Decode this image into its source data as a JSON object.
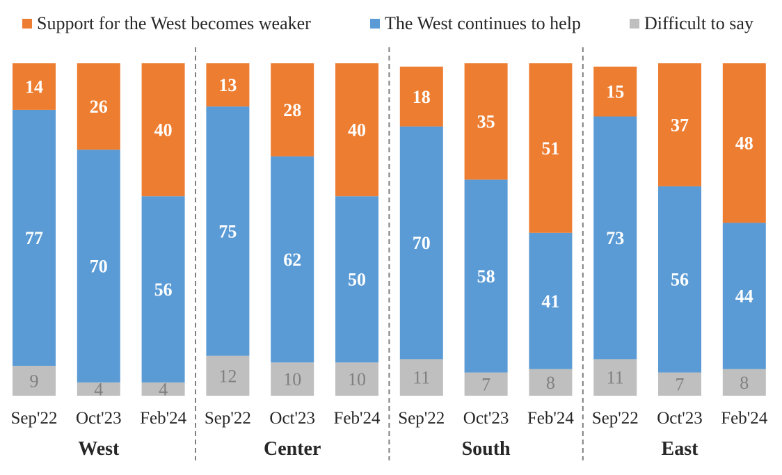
{
  "chart_data": {
    "type": "bar",
    "stacked": true,
    "categories": [
      "Sep'22",
      "Oct'23",
      "Feb'24",
      "Sep'22",
      "Oct'23",
      "Feb'24",
      "Sep'22",
      "Oct'23",
      "Feb'24",
      "Sep'22",
      "Oct'23",
      "Feb'24"
    ],
    "groups": [
      "West",
      "Center",
      "South",
      "East"
    ],
    "series": [
      {
        "name": "Difficult to say",
        "color": "#bfbfbf",
        "label_color": "#808080",
        "values": [
          9,
          4,
          4,
          12,
          10,
          10,
          11,
          7,
          8,
          11,
          7,
          8
        ]
      },
      {
        "name": "The West continues to help",
        "color": "#5b9bd5",
        "label_color": "#ffffff",
        "values": [
          77,
          70,
          56,
          75,
          62,
          50,
          70,
          58,
          41,
          73,
          56,
          44
        ]
      },
      {
        "name": "Support for the West becomes weaker",
        "color": "#ed7d31",
        "label_color": "#ffffff",
        "values": [
          14,
          26,
          40,
          13,
          28,
          40,
          18,
          35,
          51,
          15,
          37,
          48
        ]
      }
    ],
    "legend": [
      {
        "label": "Support for the West becomes weaker",
        "color": "#ed7d31"
      },
      {
        "label": "The West continues to help",
        "color": "#5b9bd5"
      },
      {
        "label": "Difficult to say",
        "color": "#bfbfbf"
      }
    ],
    "legend_position": "top",
    "ylim": [
      0,
      100
    ],
    "title": "",
    "xlabel": "",
    "ylabel": ""
  }
}
